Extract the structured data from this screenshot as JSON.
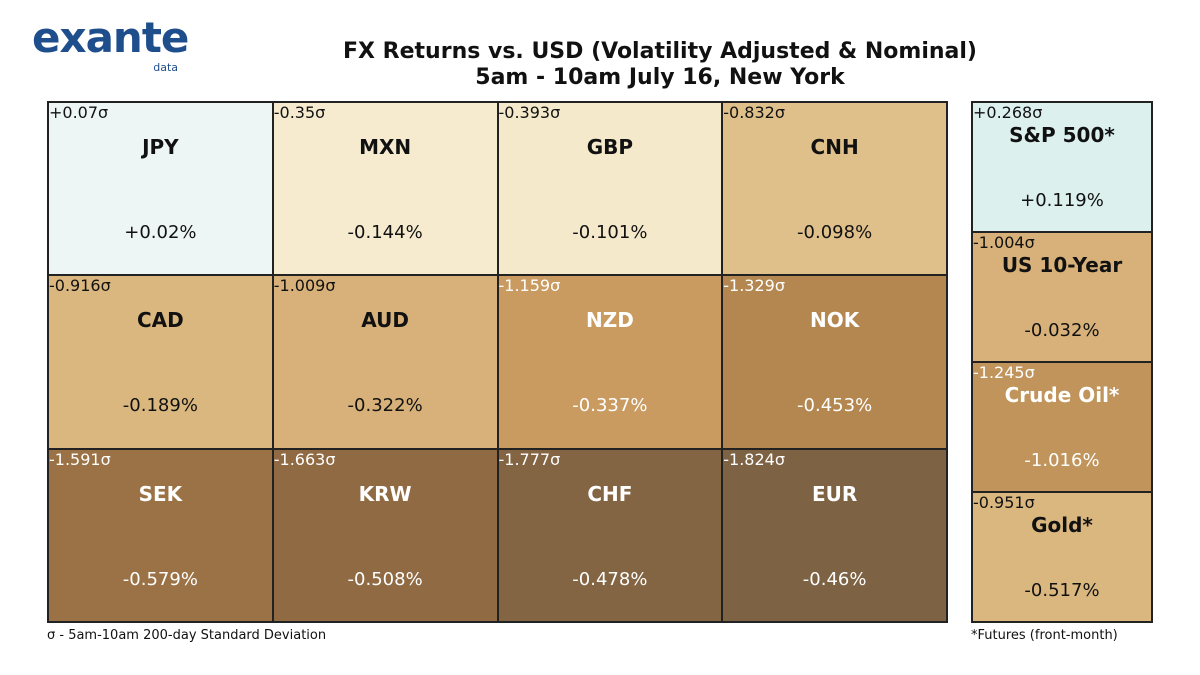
{
  "logo": {
    "text": "exante",
    "sub": "data"
  },
  "title_line1": "FX Returns vs. USD (Volatility Adjusted & Nominal)",
  "title_line2": "5am - 10am July 16, New York",
  "chart_data": [
    {
      "type": "heatmap",
      "title": "FX Returns vs. USD (Volatility Adjusted & Nominal)",
      "subtitle": "5am - 10am July 16, New York",
      "cells": [
        {
          "label": "JPY",
          "sigma": "+0.07σ",
          "pct": "+0.02%",
          "sigma_value": 0.07,
          "pct_value": 0.02,
          "color": "#eef5f5",
          "text_color": "#111111"
        },
        {
          "label": "MXN",
          "sigma": "-0.35σ",
          "pct": "-0.144%",
          "sigma_value": -0.35,
          "pct_value": -0.144,
          "color": "#f6ebcf",
          "text_color": "#111111"
        },
        {
          "label": "GBP",
          "sigma": "-0.393σ",
          "pct": "-0.101%",
          "sigma_value": -0.393,
          "pct_value": -0.101,
          "color": "#f5e9cc",
          "text_color": "#111111"
        },
        {
          "label": "CNH",
          "sigma": "-0.832σ",
          "pct": "-0.098%",
          "sigma_value": -0.832,
          "pct_value": -0.098,
          "color": "#dfc08a",
          "text_color": "#111111"
        },
        {
          "label": "CAD",
          "sigma": "-0.916σ",
          "pct": "-0.189%",
          "sigma_value": -0.916,
          "pct_value": -0.189,
          "color": "#dab77f",
          "text_color": "#111111"
        },
        {
          "label": "AUD",
          "sigma": "-1.009σ",
          "pct": "-0.322%",
          "sigma_value": -1.009,
          "pct_value": -0.322,
          "color": "#d7b179",
          "text_color": "#111111"
        },
        {
          "label": "NZD",
          "sigma": "-1.159σ",
          "pct": "-0.337%",
          "sigma_value": -1.159,
          "pct_value": -0.337,
          "color": "#c99b61",
          "text_color": "#ffffff"
        },
        {
          "label": "NOK",
          "sigma": "-1.329σ",
          "pct": "-0.453%",
          "sigma_value": -1.329,
          "pct_value": -0.453,
          "color": "#b48751",
          "text_color": "#ffffff"
        },
        {
          "label": "SEK",
          "sigma": "-1.591σ",
          "pct": "-0.579%",
          "sigma_value": -1.591,
          "pct_value": -0.579,
          "color": "#9a7245",
          "text_color": "#ffffff"
        },
        {
          "label": "KRW",
          "sigma": "-1.663σ",
          "pct": "-0.508%",
          "sigma_value": -1.663,
          "pct_value": -0.508,
          "color": "#8f6a43",
          "text_color": "#ffffff"
        },
        {
          "label": "CHF",
          "sigma": "-1.777σ",
          "pct": "-0.478%",
          "sigma_value": -1.777,
          "pct_value": -0.478,
          "color": "#836443",
          "text_color": "#ffffff"
        },
        {
          "label": "EUR",
          "sigma": "-1.824σ",
          "pct": "-0.46%",
          "sigma_value": -1.824,
          "pct_value": -0.46,
          "color": "#7e6244",
          "text_color": "#ffffff"
        }
      ]
    },
    {
      "type": "heatmap",
      "cells": [
        {
          "label": "S&P 500*",
          "sigma": "+0.268σ",
          "pct": "+0.119%",
          "sigma_value": 0.268,
          "pct_value": 0.119,
          "color": "#dcf0ee",
          "text_color": "#111111"
        },
        {
          "label": "US 10-Year",
          "sigma": "-1.004σ",
          "pct": "-0.032%",
          "sigma_value": -1.004,
          "pct_value": -0.032,
          "color": "#d7b179",
          "text_color": "#111111"
        },
        {
          "label": "Crude Oil*",
          "sigma": "-1.245σ",
          "pct": "-1.016%",
          "sigma_value": -1.245,
          "pct_value": -1.016,
          "color": "#c0945a",
          "text_color": "#ffffff"
        },
        {
          "label": "Gold*",
          "sigma": "-0.951σ",
          "pct": "-0.517%",
          "sigma_value": -0.951,
          "pct_value": -0.517,
          "color": "#dab77f",
          "text_color": "#111111"
        }
      ]
    }
  ],
  "footnote_left": "σ - 5am-10am 200-day Standard Deviation",
  "footnote_right": "*Futures (front-month)"
}
